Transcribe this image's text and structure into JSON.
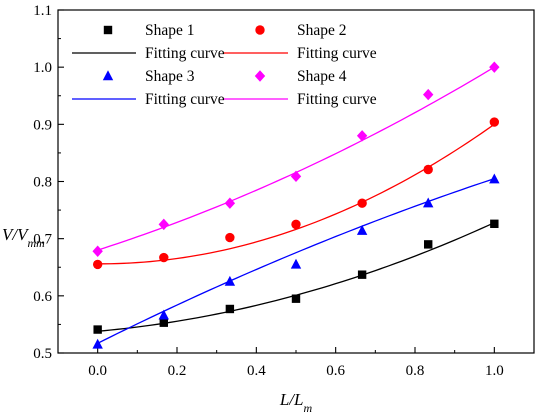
{
  "chart_data": {
    "type": "scatter",
    "xlabel": {
      "main": "L/L",
      "sub": "m"
    },
    "ylabel": {
      "main": "V/V",
      "sub": "mm"
    },
    "xlim": [
      -0.1,
      1.1
    ],
    "ylim": [
      0.5,
      1.1
    ],
    "xticks": [
      0.0,
      0.2,
      0.4,
      0.6,
      0.8,
      1.0
    ],
    "yticks": [
      0.5,
      0.6,
      0.7,
      0.8,
      0.9,
      1.0,
      1.1
    ],
    "xtick_labels": [
      "0.0",
      "0.2",
      "0.4",
      "0.6",
      "0.8",
      "1.0"
    ],
    "ytick_labels": [
      "0.5",
      "0.6",
      "0.7",
      "0.8",
      "0.9",
      "1.0",
      "1.1"
    ],
    "grid": false,
    "legend_position": "top-left",
    "x": [
      0.0,
      0.1667,
      0.3333,
      0.5,
      0.6667,
      0.8333,
      1.0
    ],
    "series": [
      {
        "name": "Shape 1",
        "marker": "square",
        "color": "#000000",
        "values": [
          0.541,
          0.553,
          0.577,
          0.595,
          0.637,
          0.69,
          0.726
        ],
        "fit": {
          "name": "Fitting curve",
          "color": "#000000",
          "coef": [
            0.538,
            0.062,
            0.128
          ]
        }
      },
      {
        "name": "Shape 2",
        "marker": "circle",
        "color": "#ff0000",
        "values": [
          0.655,
          0.667,
          0.702,
          0.725,
          0.762,
          0.821,
          0.904
        ],
        "fit": {
          "name": "Fitting curve",
          "color": "#ff0000",
          "coef": [
            0.656,
            -0.003,
            0.247
          ]
        }
      },
      {
        "name": "Shape 3",
        "marker": "triangle",
        "color": "#0000ff",
        "values": [
          0.515,
          0.566,
          0.625,
          0.655,
          0.714,
          0.762,
          0.804
        ],
        "fit": {
          "name": "Fitting curve",
          "color": "#0000ff",
          "coef": [
            0.517,
            0.346,
            -0.058
          ]
        }
      },
      {
        "name": "Shape 4",
        "marker": "diamond",
        "color": "#ff00ff",
        "values": [
          0.678,
          0.725,
          0.762,
          0.809,
          0.88,
          0.952,
          1.0
        ],
        "fit": {
          "name": "Fitting curve",
          "color": "#ff00ff",
          "coef": [
            0.68,
            0.223,
            0.097
          ]
        }
      }
    ]
  }
}
